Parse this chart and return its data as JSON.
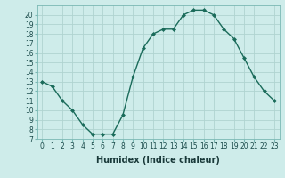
{
  "x": [
    0,
    1,
    2,
    3,
    4,
    5,
    6,
    7,
    8,
    9,
    10,
    11,
    12,
    13,
    14,
    15,
    16,
    17,
    18,
    19,
    20,
    21,
    22,
    23
  ],
  "y": [
    13,
    12.5,
    11,
    10,
    8.5,
    7.5,
    7.5,
    7.5,
    9.5,
    13.5,
    16.5,
    18,
    18.5,
    18.5,
    20,
    20.5,
    20.5,
    20,
    18.5,
    17.5,
    15.5,
    13.5,
    12,
    11
  ],
  "line_color": "#1a6b5a",
  "marker": "D",
  "marker_size": 2,
  "bg_color": "#ceecea",
  "grid_color": "#b0d4d0",
  "xlabel": "Humidex (Indice chaleur)",
  "xlim": [
    -0.5,
    23.5
  ],
  "ylim": [
    7,
    21
  ],
  "yticks": [
    7,
    8,
    9,
    10,
    11,
    12,
    13,
    14,
    15,
    16,
    17,
    18,
    19,
    20
  ],
  "xticks": [
    0,
    1,
    2,
    3,
    4,
    5,
    6,
    7,
    8,
    9,
    10,
    11,
    12,
    13,
    14,
    15,
    16,
    17,
    18,
    19,
    20,
    21,
    22,
    23
  ],
  "tick_label_size": 5.5,
  "xlabel_size": 7,
  "line_width": 1.0
}
